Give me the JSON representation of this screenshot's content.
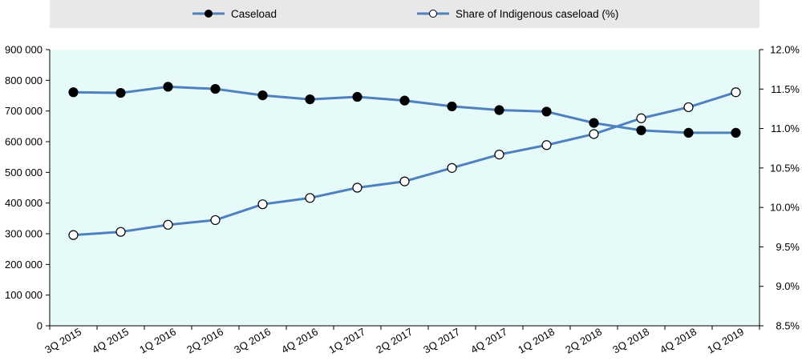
{
  "chart_data": {
    "type": "line",
    "categories": [
      "3Q 2015",
      "4Q 2015",
      "1Q 2016",
      "2Q 2016",
      "3Q 2016",
      "4Q 2016",
      "1Q 2017",
      "2Q 2017",
      "3Q 2017",
      "4Q 2017",
      "1Q 2018",
      "2Q 2018",
      "3Q 2018",
      "4Q 2018",
      "1Q 2019"
    ],
    "series": [
      {
        "name": "Caseload",
        "axis": "left",
        "marker": "filled-circle",
        "values": [
          761000,
          759000,
          779000,
          772000,
          751000,
          738000,
          746000,
          734000,
          715000,
          703000,
          698000,
          661000,
          637000,
          629000,
          629000
        ]
      },
      {
        "name": "Share of Indigenous caseload (%)",
        "axis": "right",
        "marker": "open-circle",
        "values": [
          9.65,
          9.69,
          9.78,
          9.84,
          10.04,
          10.12,
          10.25,
          10.33,
          10.5,
          10.67,
          10.79,
          10.93,
          11.13,
          11.27,
          11.46
        ]
      }
    ],
    "y_left": {
      "ylim": [
        0,
        900000
      ],
      "ticks": [
        0,
        100000,
        200000,
        300000,
        400000,
        500000,
        600000,
        700000,
        800000,
        900000
      ],
      "tick_labels": [
        "0",
        "100 000",
        "200 000",
        "300 000",
        "400 000",
        "500 000",
        "600 000",
        "700 000",
        "800 000",
        "900 000"
      ]
    },
    "y_right": {
      "ylim": [
        8.5,
        12.0
      ],
      "ticks": [
        8.5,
        9.0,
        9.5,
        10.0,
        10.5,
        11.0,
        11.5,
        12.0
      ],
      "tick_labels": [
        "8.5%",
        "9.0%",
        "9.5%",
        "10.0%",
        "10.5%",
        "11.0%",
        "11.5%",
        "12.0%"
      ]
    },
    "grid": false,
    "legend_position": "top",
    "colors": {
      "line": "#4f81bd",
      "plot_background": "#e6fafa",
      "legend_background": "#e8e8e8",
      "marker_filled": "#000000",
      "marker_open": "#ffffff",
      "axis": "#000000"
    }
  }
}
